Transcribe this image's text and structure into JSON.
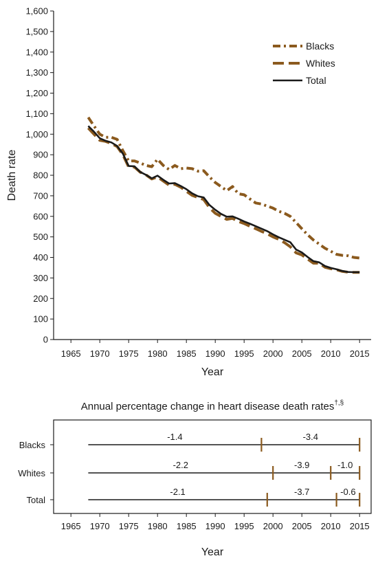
{
  "chart_data": [
    {
      "type": "line",
      "title": "",
      "xlabel": "Year",
      "ylabel": "Death rate",
      "xlim": [
        1962,
        2017
      ],
      "ylim": [
        0,
        1600
      ],
      "xticks": [
        "1965",
        "1970",
        "1975",
        "1980",
        "1985",
        "1990",
        "1995",
        "2000",
        "2005",
        "2010",
        "2015"
      ],
      "yticks": [
        "0",
        "100",
        "200",
        "300",
        "400",
        "500",
        "600",
        "700",
        "800",
        "900",
        "1,000",
        "1,100",
        "1,200",
        "1,300",
        "1,400",
        "1,500",
        "1,600"
      ],
      "grid": false,
      "legend": "top-right",
      "x": [
        1968,
        1969,
        1970,
        1971,
        1972,
        1973,
        1974,
        1975,
        1976,
        1977,
        1978,
        1979,
        1980,
        1981,
        1982,
        1983,
        1984,
        1985,
        1986,
        1987,
        1988,
        1989,
        1990,
        1991,
        1992,
        1993,
        1994,
        1995,
        1996,
        1997,
        1998,
        1999,
        2000,
        2001,
        2002,
        2003,
        2004,
        2005,
        2006,
        2007,
        2008,
        2009,
        2010,
        2011,
        2012,
        2013,
        2014,
        2015
      ],
      "series": [
        {
          "name": "Blacks",
          "style": "dash-dot",
          "color": "#8B5A1E",
          "values": [
            1082,
            1040,
            1000,
            985,
            985,
            975,
            920,
            870,
            870,
            860,
            848,
            842,
            878,
            848,
            828,
            848,
            832,
            835,
            832,
            820,
            822,
            792,
            765,
            745,
            725,
            745,
            710,
            705,
            685,
            665,
            660,
            650,
            640,
            625,
            615,
            600,
            570,
            540,
            510,
            485,
            465,
            445,
            430,
            415,
            410,
            408,
            400,
            397
          ]
        },
        {
          "name": "Whites",
          "style": "dash",
          "color": "#8B5A1E",
          "values": [
            1030,
            1000,
            970,
            965,
            955,
            940,
            900,
            840,
            840,
            815,
            802,
            782,
            792,
            772,
            752,
            756,
            742,
            722,
            702,
            692,
            682,
            642,
            615,
            600,
            585,
            590,
            575,
            565,
            552,
            540,
            527,
            515,
            500,
            488,
            472,
            452,
            422,
            412,
            392,
            372,
            372,
            352,
            345,
            340,
            332,
            328,
            327,
            327
          ]
        },
        {
          "name": "Total",
          "style": "solid",
          "color": "#1a1a1a",
          "values": [
            1040,
            1012,
            980,
            968,
            960,
            943,
            905,
            845,
            844,
            816,
            802,
            785,
            798,
            778,
            760,
            762,
            748,
            732,
            712,
            698,
            692,
            655,
            632,
            612,
            598,
            600,
            588,
            575,
            564,
            552,
            540,
            528,
            512,
            498,
            486,
            474,
            438,
            424,
            402,
            382,
            376,
            358,
            349,
            342,
            334,
            329,
            328,
            328
          ]
        }
      ]
    },
    {
      "type": "segments",
      "title": "Annual percentage change in heart disease death rates",
      "title_superscript": "†,§",
      "xlabel": "Year",
      "xlim": [
        1962,
        2017
      ],
      "xticks": [
        "1965",
        "1970",
        "1975",
        "1980",
        "1985",
        "1990",
        "1995",
        "2000",
        "2005",
        "2010",
        "2015"
      ],
      "rows": [
        {
          "name": "Blacks",
          "start": 1968,
          "end": 2015,
          "segments": [
            {
              "from": 1968,
              "to": 1998,
              "label": "-1.4"
            },
            {
              "from": 1998,
              "to": 2015,
              "label": "-3.4"
            }
          ]
        },
        {
          "name": "Whites",
          "start": 1968,
          "end": 2015,
          "segments": [
            {
              "from": 1968,
              "to": 2000,
              "label": "-2.2"
            },
            {
              "from": 2000,
              "to": 2010,
              "label": "-3.9"
            },
            {
              "from": 2010,
              "to": 2015,
              "label": "-1.0"
            }
          ]
        },
        {
          "name": "Total",
          "start": 1968,
          "end": 2015,
          "segments": [
            {
              "from": 1968,
              "to": 1999,
              "label": "-2.1"
            },
            {
              "from": 1999,
              "to": 2011,
              "label": "-3.7"
            },
            {
              "from": 2011,
              "to": 2015,
              "label": "-0.6"
            }
          ]
        }
      ],
      "joinpoint_color": "#8B5A1E"
    }
  ]
}
